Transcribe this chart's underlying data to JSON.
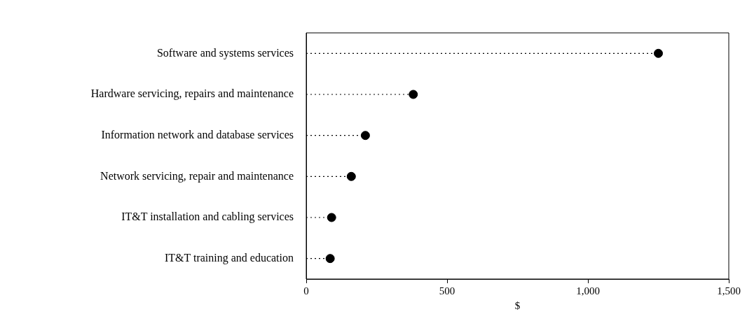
{
  "chart_data": {
    "type": "lollipop",
    "orientation": "horizontal",
    "xlabel": "$",
    "categories": [
      "Software and systems services",
      "Hardware servicing, repairs and maintenance",
      "Information network and database services",
      "Network servicing, repair and maintenance",
      "IT&T installation and cabling services",
      "IT&T training and education"
    ],
    "values": [
      1250,
      380,
      210,
      160,
      90,
      85
    ],
    "color": "#000000",
    "xlim": [
      0,
      1500
    ],
    "xticks": [
      0,
      500,
      {
        "value": 1000,
        "label": "1,000"
      },
      {
        "value": 1500,
        "label": "1,500"
      }
    ],
    "grid": false,
    "legend": false,
    "marker": "circle",
    "line_style": "dotted"
  }
}
